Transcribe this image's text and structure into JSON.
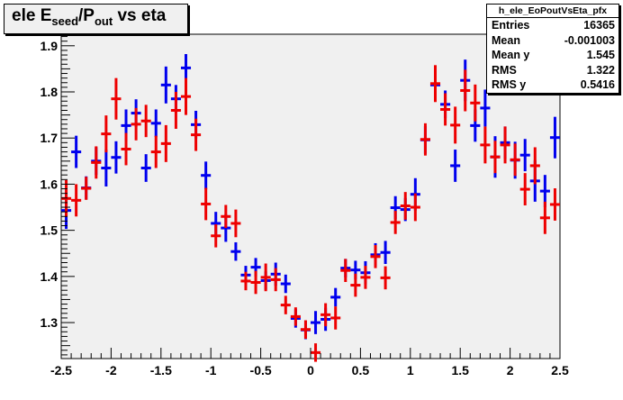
{
  "title": {
    "main": "ele E",
    "sub1": "seed",
    "mid": "/P",
    "sub2": "out",
    "tail": " vs eta"
  },
  "stats": {
    "name": "h_ele_EoPoutVsEta_pfx",
    "rows": [
      {
        "label": "Entries",
        "value": "16365"
      },
      {
        "label": "Mean",
        "value": "-0.001003"
      },
      {
        "label": "Mean y",
        "value": "1.545"
      },
      {
        "label": "RMS",
        "value": "1.322"
      },
      {
        "label": "RMS y",
        "value": "0.5416"
      }
    ]
  },
  "colors": {
    "blue": "#0000ee",
    "red": "#ee0000",
    "frame_bg": "#f0f0f0"
  },
  "chart_data": {
    "type": "scatter",
    "xlim": [
      -2.5,
      2.5
    ],
    "ylim": [
      1.222,
      1.925
    ],
    "x_ticks": [
      "-2.5",
      "-2",
      "-1.5",
      "-1",
      "-0.5",
      "0",
      "0.5",
      "1",
      "1.5",
      "2",
      "2.5"
    ],
    "y_ticks": [
      "1.3",
      "1.4",
      "1.5",
      "1.6",
      "1.7",
      "1.8",
      "1.9"
    ],
    "grid": false,
    "series": [
      {
        "color": "blue",
        "points": [
          [
            -2.45,
            1.543,
            0.04
          ],
          [
            -2.35,
            1.67,
            0.035
          ],
          [
            -2.25,
            1.592,
            0.025
          ],
          [
            -2.15,
            1.65,
            0.03
          ],
          [
            -2.05,
            1.635,
            0.04
          ],
          [
            -1.95,
            1.658,
            0.035
          ],
          [
            -1.85,
            1.727,
            0.035
          ],
          [
            -1.75,
            1.754,
            0.03
          ],
          [
            -1.65,
            1.635,
            0.03
          ],
          [
            -1.55,
            1.732,
            0.03
          ],
          [
            -1.45,
            1.815,
            0.04
          ],
          [
            -1.35,
            1.785,
            0.03
          ],
          [
            -1.25,
            1.852,
            0.03
          ],
          [
            -1.15,
            1.729,
            0.03
          ],
          [
            -1.05,
            1.619,
            0.03
          ],
          [
            -0.95,
            1.515,
            0.025
          ],
          [
            -0.85,
            1.505,
            0.03
          ],
          [
            -0.75,
            1.454,
            0.02
          ],
          [
            -0.65,
            1.403,
            0.02
          ],
          [
            -0.55,
            1.42,
            0.02
          ],
          [
            -0.45,
            1.391,
            0.02
          ],
          [
            -0.35,
            1.405,
            0.025
          ],
          [
            -0.25,
            1.384,
            0.02
          ],
          [
            -0.15,
            1.309,
            0.02
          ],
          [
            -0.05,
            1.284,
            0.02
          ],
          [
            0.05,
            1.3,
            0.025
          ],
          [
            0.15,
            1.307,
            0.025
          ],
          [
            0.25,
            1.355,
            0.02
          ],
          [
            0.35,
            1.418,
            0.02
          ],
          [
            0.45,
            1.414,
            0.02
          ],
          [
            0.55,
            1.408,
            0.025
          ],
          [
            0.65,
            1.447,
            0.025
          ],
          [
            0.75,
            1.452,
            0.025
          ],
          [
            0.85,
            1.549,
            0.025
          ],
          [
            0.95,
            1.545,
            0.025
          ],
          [
            1.05,
            1.578,
            0.035
          ],
          [
            1.15,
            1.696,
            0.03
          ],
          [
            1.25,
            1.815,
            0.025
          ],
          [
            1.35,
            1.773,
            0.03
          ],
          [
            1.45,
            1.64,
            0.035
          ],
          [
            1.55,
            1.825,
            0.045
          ],
          [
            1.65,
            1.727,
            0.035
          ],
          [
            1.75,
            1.765,
            0.04
          ],
          [
            1.85,
            1.659,
            0.045
          ],
          [
            1.95,
            1.69,
            0.035
          ],
          [
            2.05,
            1.652,
            0.04
          ],
          [
            2.15,
            1.663,
            0.035
          ],
          [
            2.25,
            1.607,
            0.045
          ],
          [
            2.35,
            1.585,
            0.035
          ],
          [
            2.45,
            1.701,
            0.045
          ]
        ]
      },
      {
        "color": "red",
        "points": [
          [
            -2.45,
            1.569,
            0.04
          ],
          [
            -2.35,
            1.565,
            0.035
          ],
          [
            -2.25,
            1.591,
            0.025
          ],
          [
            -2.15,
            1.647,
            0.035
          ],
          [
            -2.05,
            1.709,
            0.04
          ],
          [
            -1.95,
            1.785,
            0.045
          ],
          [
            -1.85,
            1.676,
            0.035
          ],
          [
            -1.75,
            1.73,
            0.035
          ],
          [
            -1.65,
            1.737,
            0.035
          ],
          [
            -1.55,
            1.67,
            0.035
          ],
          [
            -1.45,
            1.688,
            0.04
          ],
          [
            -1.35,
            1.76,
            0.04
          ],
          [
            -1.25,
            1.79,
            0.04
          ],
          [
            -1.15,
            1.707,
            0.035
          ],
          [
            -1.05,
            1.557,
            0.035
          ],
          [
            -0.95,
            1.488,
            0.025
          ],
          [
            -0.85,
            1.53,
            0.025
          ],
          [
            -0.75,
            1.515,
            0.03
          ],
          [
            -0.65,
            1.39,
            0.02
          ],
          [
            -0.55,
            1.387,
            0.025
          ],
          [
            -0.45,
            1.398,
            0.03
          ],
          [
            -0.35,
            1.393,
            0.025
          ],
          [
            -0.25,
            1.338,
            0.02
          ],
          [
            -0.15,
            1.313,
            0.02
          ],
          [
            -0.05,
            1.285,
            0.02
          ],
          [
            0.05,
            1.235,
            0.02
          ],
          [
            0.15,
            1.317,
            0.025
          ],
          [
            0.25,
            1.31,
            0.025
          ],
          [
            0.35,
            1.413,
            0.025
          ],
          [
            0.45,
            1.381,
            0.025
          ],
          [
            0.55,
            1.398,
            0.025
          ],
          [
            0.65,
            1.443,
            0.025
          ],
          [
            0.75,
            1.397,
            0.025
          ],
          [
            0.85,
            1.517,
            0.025
          ],
          [
            0.95,
            1.553,
            0.03
          ],
          [
            1.05,
            1.55,
            0.03
          ],
          [
            1.15,
            1.697,
            0.035
          ],
          [
            1.25,
            1.818,
            0.04
          ],
          [
            1.35,
            1.762,
            0.035
          ],
          [
            1.45,
            1.728,
            0.04
          ],
          [
            1.55,
            1.803,
            0.045
          ],
          [
            1.65,
            1.776,
            0.04
          ],
          [
            1.75,
            1.685,
            0.04
          ],
          [
            1.85,
            1.659,
            0.035
          ],
          [
            1.95,
            1.685,
            0.04
          ],
          [
            2.05,
            1.653,
            0.035
          ],
          [
            2.15,
            1.589,
            0.035
          ],
          [
            2.25,
            1.64,
            0.04
          ],
          [
            2.35,
            1.527,
            0.035
          ],
          [
            2.45,
            1.556,
            0.035
          ]
        ]
      }
    ]
  }
}
